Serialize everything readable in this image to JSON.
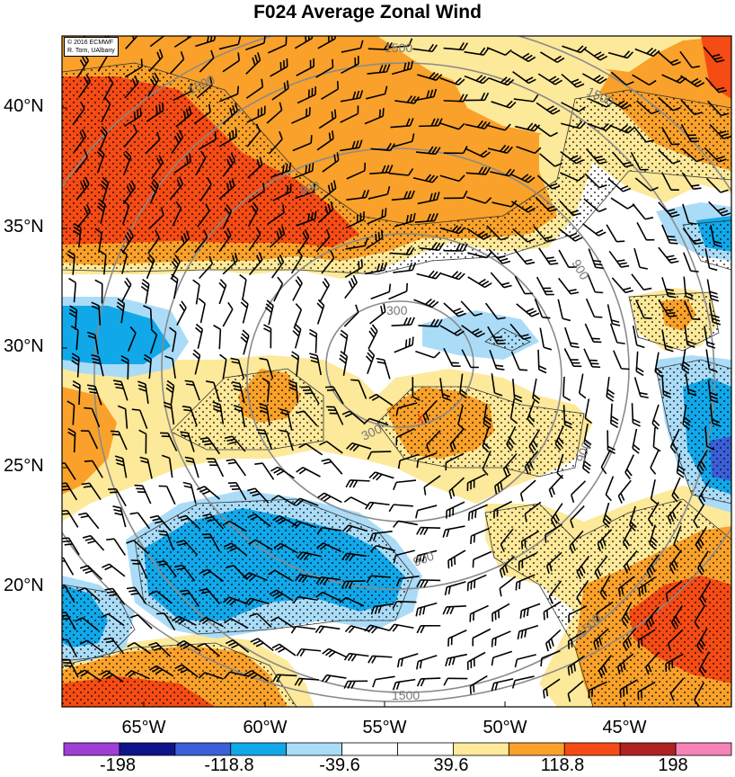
{
  "title": "F024 Average Zonal Wind",
  "credit": {
    "line1": "© 2016 ECMWF",
    "line2": "R. Torn, UAlbany"
  },
  "latitude_labels": [
    "40°N",
    "35°N",
    "30°N",
    "25°N",
    "20°N"
  ],
  "longitude_labels": [
    "65°W",
    "60°W",
    "55°W",
    "50°W",
    "45°W"
  ],
  "contour_labels": [
    "1500",
    "1500",
    "1500",
    "1500",
    "1500",
    "900",
    "900",
    "900",
    "900",
    "300",
    "300"
  ],
  "colorbar": {
    "tick_labels": [
      "-198",
      "-118.8",
      "-39.6",
      "39.6",
      "118.8",
      "198"
    ],
    "colors": [
      "#9f3fd6",
      "#0d148a",
      "#3a5fd8",
      "#11a8ea",
      "#aadcf8",
      "#ffffff",
      "#ffffff",
      "#fde99a",
      "#f9a12a",
      "#f54b15",
      "#b02222",
      "#f683b8"
    ]
  },
  "colors": {
    "orange": "#f9a12a",
    "red": "#f54b15",
    "yellow": "#fde99a",
    "light_blue": "#aadcf8",
    "blue": "#11a8ea",
    "dark_blue": "#3a5fd8"
  }
}
